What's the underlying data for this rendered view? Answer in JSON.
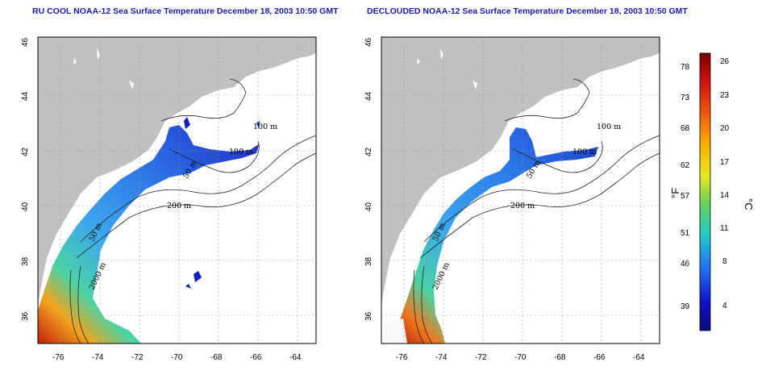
{
  "panels": [
    {
      "title": "RU COOL NOAA-12 Sea Surface Temperature December 18, 2003 10:50 GMT",
      "x_ticks": [
        "-76",
        "-74",
        "-72",
        "-70",
        "-68",
        "-66",
        "-64"
      ],
      "y_ticks": [
        "36",
        "38",
        "40",
        "42",
        "44",
        "46"
      ],
      "contour_labels": [
        "100 m",
        "100 m",
        "50 m",
        "200 m",
        "50 m",
        "2000 m"
      ]
    },
    {
      "title": "DECLOUDED NOAA-12 Sea Surface Temperature December 18, 2003 10:50 GMT",
      "x_ticks": [
        "-76",
        "-74",
        "-72",
        "-70",
        "-68",
        "-66",
        "-64"
      ],
      "y_ticks": [
        "36",
        "38",
        "40",
        "42",
        "44",
        "46"
      ],
      "contour_labels": [
        "100 m",
        "100 m",
        "50 m",
        "200 m",
        "50 m",
        "2000 m"
      ]
    }
  ],
  "colorbar": {
    "f_label": "°F",
    "c_label": "°C",
    "f_ticks": [
      "78",
      "73",
      "68",
      "62",
      "57",
      "51",
      "46",
      "39"
    ],
    "c_ticks": [
      "26",
      "23",
      "20",
      "17",
      "14",
      "11",
      "8",
      "4"
    ],
    "colors": [
      "#7a0000",
      "#d01010",
      "#f05a10",
      "#f8b000",
      "#e8e820",
      "#60d060",
      "#20c8d0",
      "#2070f0",
      "#1010c8",
      "#0a0a78"
    ]
  }
}
